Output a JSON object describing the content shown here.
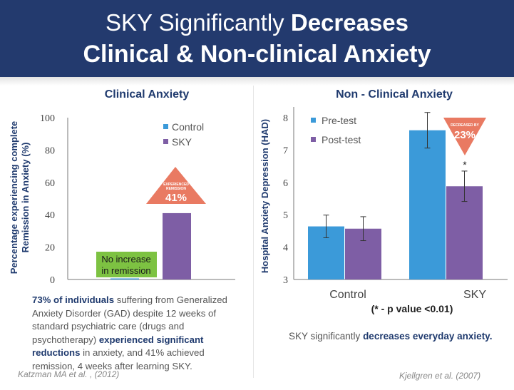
{
  "banner": {
    "line1_plain": "SKY Significantly",
    "line1_bold": "Decreases",
    "line2": "Clinical & Non-clinical Anxiety"
  },
  "colors": {
    "banner": "#233a6e",
    "control": "#3b9ad9",
    "sky": "#7e5ea5",
    "no_increase_box": "#7dc242",
    "callout": "#e97a62",
    "title_text": "#1f3a6e"
  },
  "chart_data": [
    {
      "type": "bar",
      "title": "Clinical Anxiety",
      "ylabel_line1": "Percentage experiencing complete",
      "ylabel_line2": "Remission in Anxiety (%)",
      "ylim": [
        0,
        100
      ],
      "yticks": [
        0,
        20,
        40,
        60,
        80,
        100
      ],
      "series": [
        {
          "name": "Control",
          "values": [
            0
          ]
        },
        {
          "name": "SKY",
          "values": [
            41
          ]
        }
      ],
      "annotations": {
        "no_increase_line1": "No increase",
        "no_increase_line2": "in remission",
        "callout_line1": "EXPERIENCED",
        "callout_line2": "REMISSION",
        "callout_value": "41%"
      }
    },
    {
      "type": "bar",
      "title": "Non - Clinical Anxiety",
      "ylabel": "Hospital Anxiety Depression  (HAD)",
      "ylim": [
        3,
        8.5
      ],
      "yticks": [
        3,
        4,
        5,
        6,
        7,
        8
      ],
      "categories": [
        "Control",
        "SKY"
      ],
      "series": [
        {
          "name": "Pre-test",
          "values": [
            4.64,
            7.61
          ],
          "error": [
            0.35,
            0.55
          ]
        },
        {
          "name": "Post-test",
          "values": [
            4.57,
            5.88
          ],
          "error": [
            0.37,
            0.47
          ]
        }
      ],
      "annotations": {
        "significance_marker": "*",
        "pvalue_note": "(* - p value <0.01)",
        "callout_line1": "DECREASED BY",
        "callout_value": "23%"
      }
    }
  ],
  "notes": {
    "left_bold1": "73% of individuals",
    "left_text1": " suffering from Generalized Anxiety Disorder (GAD) despite 12 weeks of standard psychiatric care (drugs and psychotherapy) ",
    "left_bold2": "experienced significant reductions",
    "left_text2": " in anxiety, and 41% achieved remission, 4 weeks after learning SKY.",
    "right_text": "SKY significantly ",
    "right_bold": "decreases everyday anxiety."
  },
  "citations": {
    "left": "Katzman MA et al. , (2012)",
    "right": "Kjellgren et al. (2007)"
  }
}
